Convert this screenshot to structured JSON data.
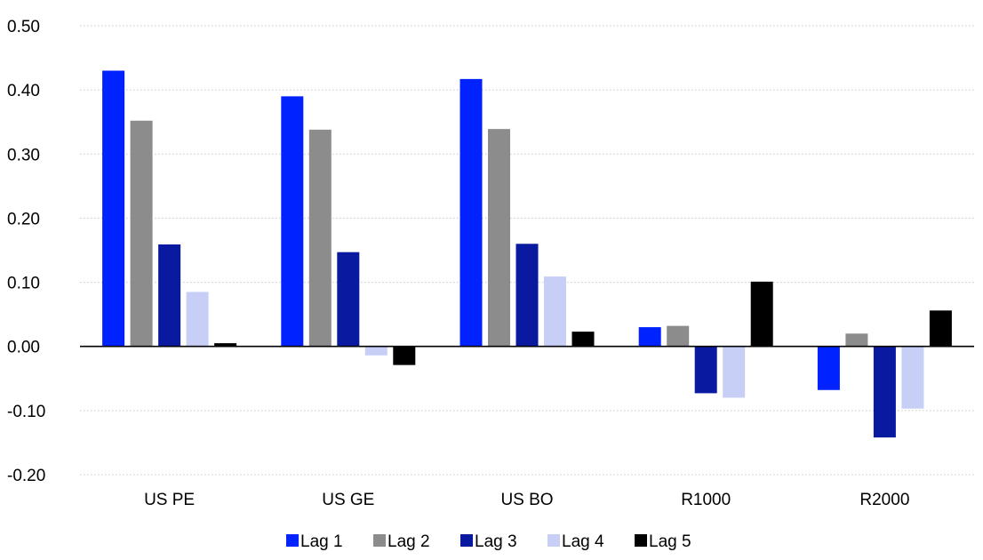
{
  "chart_data": {
    "type": "bar",
    "title": "",
    "xlabel": "",
    "ylabel": "",
    "categories": [
      "US PE",
      "US GE",
      "US BO",
      "R1000",
      "R2000"
    ],
    "series": [
      {
        "name": "Lag 1",
        "color": "#0022FF",
        "values": [
          0.43,
          0.39,
          0.417,
          0.03,
          -0.068
        ]
      },
      {
        "name": "Lag 2",
        "color": "#8C8C8C",
        "values": [
          0.352,
          0.338,
          0.339,
          0.032,
          0.02
        ]
      },
      {
        "name": "Lag 3",
        "color": "#0A1AA0",
        "values": [
          0.159,
          0.147,
          0.16,
          -0.073,
          -0.142
        ]
      },
      {
        "name": "Lag 4",
        "color": "#C8CFF7",
        "values": [
          0.085,
          -0.014,
          0.109,
          -0.08,
          -0.097
        ]
      },
      {
        "name": "Lag 5",
        "color": "#000000",
        "values": [
          0.005,
          -0.029,
          0.023,
          0.101,
          0.056
        ]
      }
    ],
    "ylim": [
      -0.2,
      0.5
    ],
    "yticks": [
      -0.2,
      -0.1,
      0.0,
      0.1,
      0.2,
      0.3,
      0.4,
      0.5
    ],
    "ytick_labels": [
      "-0.20",
      "-0.10",
      "0.00",
      "0.10",
      "0.20",
      "0.30",
      "0.40",
      "0.50"
    ],
    "grid": true,
    "legend_position": "bottom"
  }
}
